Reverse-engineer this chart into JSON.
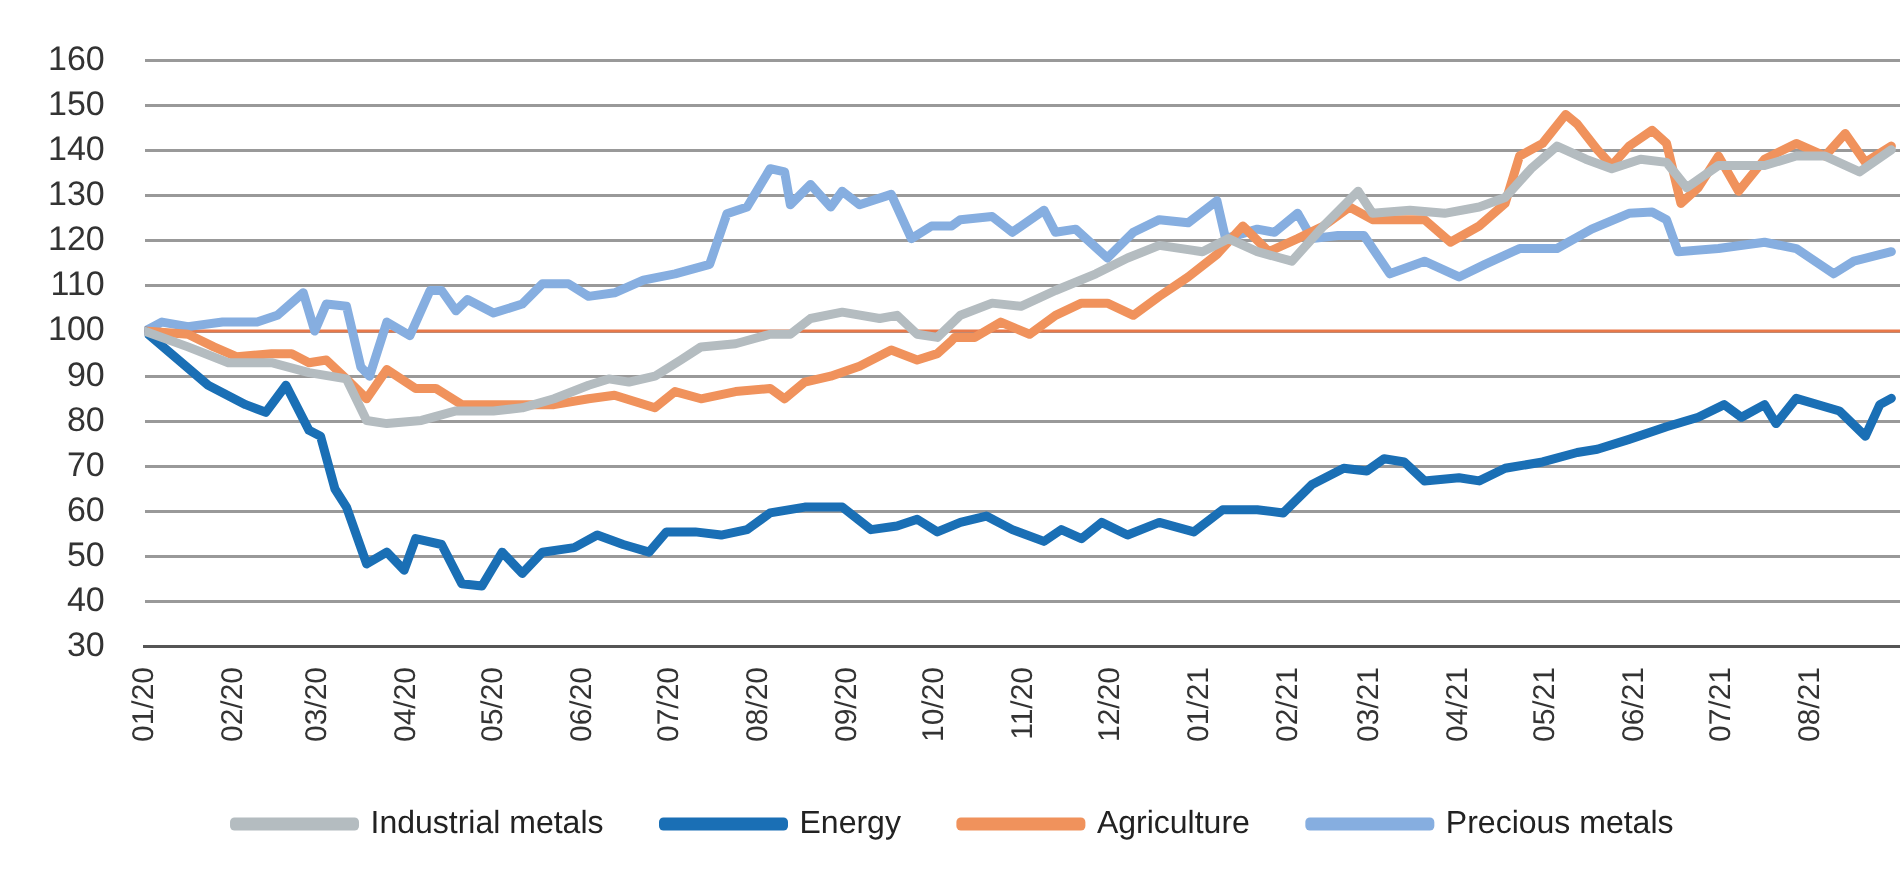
{
  "chart_data": {
    "type": "line",
    "xlim": [
      "2020-01-01",
      "2021-09-01"
    ],
    "xticks": [
      {
        "value": "2020-01",
        "label": "01/20"
      },
      {
        "value": "2020-02",
        "label": "02/20"
      },
      {
        "value": "2020-03",
        "label": "03/20"
      },
      {
        "value": "2020-04",
        "label": "04/20"
      },
      {
        "value": "2020-05",
        "label": "05/20"
      },
      {
        "value": "2020-06",
        "label": "06/20"
      },
      {
        "value": "2020-07",
        "label": "07/20"
      },
      {
        "value": "2020-08",
        "label": "08/20"
      },
      {
        "value": "2020-09",
        "label": "09/20"
      },
      {
        "value": "2020-10",
        "label": "10/20"
      },
      {
        "value": "2020-11",
        "label": "11/20"
      },
      {
        "value": "2020-12",
        "label": "12/20"
      },
      {
        "value": "2021-01",
        "label": "01/21"
      },
      {
        "value": "2021-02",
        "label": "02/21"
      },
      {
        "value": "2021-03",
        "label": "03/21"
      },
      {
        "value": "2021-04",
        "label": "04/21"
      },
      {
        "value": "2021-05",
        "label": "05/21"
      },
      {
        "value": "2021-06",
        "label": "06/21"
      },
      {
        "value": "2021-07",
        "label": "07/21"
      },
      {
        "value": "2021-08",
        "label": "08/21"
      }
    ],
    "ylim": [
      30,
      160
    ],
    "yticks": [
      30,
      40,
      50,
      60,
      70,
      80,
      90,
      100,
      110,
      120,
      130,
      140,
      150,
      160
    ],
    "grid": "y",
    "legend": "bottom",
    "marker": "none",
    "line_style": "solid",
    "ref_lines": [
      {
        "axis": "y",
        "value": 100,
        "color": "#e8794a"
      }
    ],
    "series": [
      {
        "name": "Industrial metals",
        "color": "#b4bcc0",
        "x": [
          "2020-01-01",
          "2020-01-16",
          "2020-01-30",
          "2020-02-14",
          "2020-02-27",
          "2020-03-11",
          "2020-03-18",
          "2020-03-25",
          "2020-04-06",
          "2020-04-18",
          "2020-05-01",
          "2020-05-11",
          "2020-05-22",
          "2020-06-03",
          "2020-06-10",
          "2020-06-17",
          "2020-06-26",
          "2020-07-05",
          "2020-07-12",
          "2020-07-24",
          "2020-08-05",
          "2020-08-12",
          "2020-08-19",
          "2020-08-30",
          "2020-09-12",
          "2020-09-18",
          "2020-09-25",
          "2020-10-02",
          "2020-10-10",
          "2020-10-21",
          "2020-10-31",
          "2020-11-12",
          "2020-11-26",
          "2020-12-07",
          "2020-12-18",
          "2021-01-02",
          "2021-01-11",
          "2021-01-21",
          "2021-02-02",
          "2021-02-13",
          "2021-02-25",
          "2021-03-02",
          "2021-03-15",
          "2021-03-27",
          "2021-04-08",
          "2021-04-17",
          "2021-04-26",
          "2021-05-05",
          "2021-05-15",
          "2021-05-24",
          "2021-06-03",
          "2021-06-12",
          "2021-06-19",
          "2021-06-30",
          "2021-07-16",
          "2021-07-27",
          "2021-08-06",
          "2021-08-18",
          "2021-08-29"
        ],
        "values": [
          100,
          96.5,
          93,
          93,
          90.8,
          89.4,
          80.2,
          79.5,
          80.2,
          82.3,
          82.3,
          83,
          85,
          88,
          89.4,
          88.7,
          90,
          93.6,
          96.5,
          97.2,
          99.3,
          99.3,
          102.8,
          104.2,
          102.8,
          103.5,
          99.3,
          98.6,
          103.5,
          106.2,
          105.5,
          109,
          112.7,
          116.2,
          119,
          117.6,
          120.5,
          117.6,
          115.5,
          123.3,
          131,
          126.1,
          126.8,
          126.1,
          127.5,
          129.6,
          136,
          141,
          138.1,
          136,
          138.1,
          137.4,
          131.8,
          136.7,
          136.7,
          138.8,
          138.8,
          135.3,
          140.2
        ]
      },
      {
        "name": "Energy",
        "color": "#1a6fb5",
        "x": [
          "2020-01-01",
          "2020-01-23",
          "2020-02-05",
          "2020-02-12",
          "2020-02-19",
          "2020-02-27",
          "2020-03-02",
          "2020-03-07",
          "2020-03-11",
          "2020-03-18",
          "2020-03-25",
          "2020-03-31",
          "2020-04-04",
          "2020-04-13",
          "2020-04-20",
          "2020-04-27",
          "2020-05-04",
          "2020-05-11",
          "2020-05-18",
          "2020-05-29",
          "2020-06-06",
          "2020-06-15",
          "2020-06-24",
          "2020-06-30",
          "2020-07-10",
          "2020-07-19",
          "2020-07-28",
          "2020-08-05",
          "2020-08-17",
          "2020-08-30",
          "2020-09-09",
          "2020-09-18",
          "2020-09-25",
          "2020-10-02",
          "2020-10-10",
          "2020-10-19",
          "2020-10-28",
          "2020-11-08",
          "2020-11-14",
          "2020-11-21",
          "2020-11-28",
          "2020-12-07",
          "2020-12-18",
          "2020-12-30",
          "2021-01-09",
          "2021-01-21",
          "2021-01-30",
          "2021-02-09",
          "2021-02-20",
          "2021-02-28",
          "2021-03-06",
          "2021-03-13",
          "2021-03-20",
          "2021-04-01",
          "2021-04-08",
          "2021-04-17",
          "2021-04-30",
          "2021-05-12",
          "2021-05-19",
          "2021-05-30",
          "2021-06-12",
          "2021-06-23",
          "2021-07-02",
          "2021-07-08",
          "2021-07-16",
          "2021-07-20",
          "2021-07-27",
          "2021-08-11",
          "2021-08-20",
          "2021-08-25",
          "2021-08-29"
        ],
        "values": [
          100,
          88,
          83.7,
          82,
          88,
          78,
          76.7,
          65,
          61,
          48.4,
          51,
          47,
          54,
          52.7,
          44,
          43.5,
          51,
          46.3,
          51,
          52,
          54.8,
          52.7,
          51,
          55.5,
          55.5,
          54.8,
          56,
          59.7,
          61,
          61,
          56,
          56.8,
          58.3,
          55.5,
          57.6,
          59,
          56,
          53.4,
          56,
          54,
          57.6,
          54.8,
          57.6,
          55.5,
          60.4,
          60.4,
          59.7,
          66,
          69.6,
          69,
          71.7,
          71,
          66.8,
          67.5,
          66.8,
          69.6,
          71,
          73.1,
          73.8,
          76,
          78.8,
          80.9,
          83.7,
          80.9,
          83.7,
          79.5,
          85.1,
          82.3,
          76.7,
          83.7,
          85.1
        ]
      },
      {
        "name": "Agriculture",
        "color": "#f0925c",
        "x": [
          "2020-01-01",
          "2020-01-16",
          "2020-01-25",
          "2020-02-02",
          "2020-02-14",
          "2020-02-21",
          "2020-02-27",
          "2020-03-04",
          "2020-03-11",
          "2020-03-18",
          "2020-03-25",
          "2020-04-04",
          "2020-04-11",
          "2020-04-20",
          "2020-05-01",
          "2020-05-11",
          "2020-05-22",
          "2020-06-03",
          "2020-06-12",
          "2020-06-26",
          "2020-07-03",
          "2020-07-12",
          "2020-07-24",
          "2020-08-05",
          "2020-08-10",
          "2020-08-17",
          "2020-08-26",
          "2020-09-05",
          "2020-09-16",
          "2020-09-25",
          "2020-10-02",
          "2020-10-07",
          "2020-10-08",
          "2020-10-15",
          "2020-10-24",
          "2020-11-03",
          "2020-11-12",
          "2020-11-21",
          "2020-11-30",
          "2020-12-09",
          "2020-12-18",
          "2020-12-28",
          "2021-01-07",
          "2021-01-16",
          "2021-01-25",
          "2021-02-04",
          "2021-02-13",
          "2021-02-22",
          "2021-03-02",
          "2021-03-11",
          "2021-03-20",
          "2021-03-29",
          "2021-04-08",
          "2021-04-17",
          "2021-04-22",
          "2021-04-30",
          "2021-05-08",
          "2021-05-12",
          "2021-05-19",
          "2021-05-24",
          "2021-05-30",
          "2021-06-07",
          "2021-06-12",
          "2021-06-17",
          "2021-06-23",
          "2021-06-30",
          "2021-07-07",
          "2021-07-16",
          "2021-07-27",
          "2021-08-06",
          "2021-08-13",
          "2021-08-20",
          "2021-08-29"
        ],
        "values": [
          100,
          99.3,
          96.5,
          94.3,
          95,
          95,
          93,
          93.6,
          89.4,
          85,
          91.5,
          87.3,
          87.3,
          83.7,
          83.7,
          83.7,
          83.7,
          85,
          85.8,
          83,
          86.6,
          85,
          86.6,
          87.3,
          85,
          88.7,
          90,
          92.2,
          95.8,
          93.6,
          95,
          97.9,
          98.6,
          98.6,
          102,
          99.3,
          103.5,
          106.2,
          106.2,
          103.5,
          107.7,
          112,
          117,
          123.3,
          117.6,
          120.5,
          123.3,
          127.5,
          124.7,
          124.7,
          124.7,
          119.7,
          123.3,
          128.3,
          138.8,
          141.6,
          148,
          145.9,
          140.2,
          136.7,
          141,
          144.5,
          141.6,
          128.3,
          131.8,
          138.8,
          131,
          138.1,
          141.6,
          138.8,
          143.8,
          137.4,
          141
        ]
      },
      {
        "name": "Precious metals",
        "color": "#86aee0",
        "x": [
          "2020-01-01",
          "2020-01-07",
          "2020-01-16",
          "2020-01-28",
          "2020-02-09",
          "2020-02-16",
          "2020-02-25",
          "2020-02-29",
          "2020-03-04",
          "2020-03-11",
          "2020-03-16",
          "2020-03-19",
          "2020-03-25",
          "2020-04-02",
          "2020-04-09",
          "2020-04-13",
          "2020-04-18",
          "2020-04-22",
          "2020-05-01",
          "2020-05-11",
          "2020-05-18",
          "2020-05-27",
          "2020-06-03",
          "2020-06-12",
          "2020-06-22",
          "2020-07-03",
          "2020-07-15",
          "2020-07-21",
          "2020-07-28",
          "2020-08-05",
          "2020-08-10",
          "2020-08-12",
          "2020-08-19",
          "2020-08-26",
          "2020-08-30",
          "2020-09-05",
          "2020-09-16",
          "2020-09-23",
          "2020-09-30",
          "2020-10-07",
          "2020-10-10",
          "2020-10-21",
          "2020-10-28",
          "2020-11-08",
          "2020-11-12",
          "2020-11-19",
          "2020-11-30",
          "2020-12-09",
          "2020-12-18",
          "2020-12-28",
          "2021-01-07",
          "2021-01-10",
          "2021-01-21",
          "2021-01-27",
          "2021-02-04",
          "2021-02-09",
          "2021-02-18",
          "2021-02-27",
          "2021-03-08",
          "2021-03-20",
          "2021-04-01",
          "2021-04-10",
          "2021-04-22",
          "2021-05-05",
          "2021-05-17",
          "2021-05-30",
          "2021-06-07",
          "2021-06-12",
          "2021-06-16",
          "2021-06-30",
          "2021-07-16",
          "2021-07-27",
          "2021-08-09",
          "2021-08-16",
          "2021-08-29"
        ],
        "values": [
          100,
          102,
          101,
          102,
          102,
          103.5,
          108.5,
          100,
          106,
          105.5,
          92,
          90,
          102,
          99,
          109,
          109,
          104.5,
          107,
          104,
          106,
          110.5,
          110.5,
          107.7,
          108.5,
          111.3,
          112.7,
          114.8,
          126,
          127.5,
          136,
          135.3,
          128,
          132.5,
          127.5,
          131,
          128,
          130.3,
          120.5,
          123.3,
          123.3,
          124.7,
          125.4,
          121.9,
          126.8,
          121.9,
          122.6,
          116.2,
          121.9,
          124.7,
          124,
          128.9,
          120.5,
          122.6,
          121.9,
          126.1,
          120.5,
          121.2,
          121.2,
          112.7,
          115.5,
          112,
          114.8,
          118.3,
          118.3,
          122.6,
          126.1,
          126.4,
          124.7,
          117.6,
          118.3,
          119.7,
          118.3,
          112.7,
          115.5,
          117.6
        ]
      }
    ]
  }
}
